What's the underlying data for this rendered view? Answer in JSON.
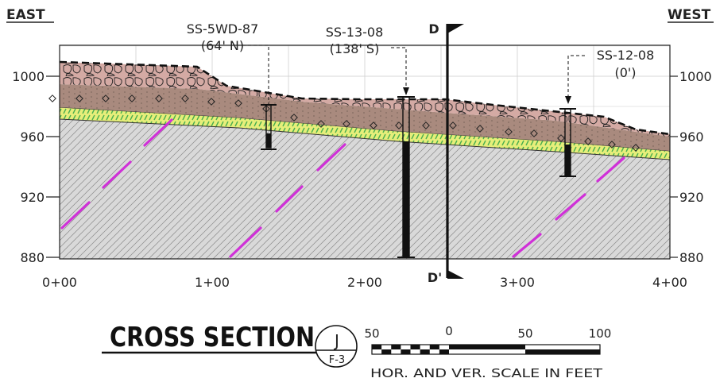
{
  "header": {
    "left_label": "EAST",
    "right_label": "WEST"
  },
  "section_line": {
    "top_label": "D",
    "bottom_label": "D'"
  },
  "axis": {
    "left_elevations": [
      "1000",
      "960",
      "920",
      "880"
    ],
    "right_elevations": [
      "1000",
      "960",
      "920",
      "880"
    ],
    "stations": [
      "0+00",
      "1+00",
      "2+00",
      "3+00",
      "4+00"
    ]
  },
  "borings": [
    {
      "id": "SS-5WD-87",
      "offset": "(64' N)"
    },
    {
      "id": "SS-13-08",
      "offset": "(138' S)"
    },
    {
      "id": "SS-12-08",
      "offset": "(0')"
    }
  ],
  "title_block": {
    "title": "CROSS SECTION",
    "section_letter": "J",
    "sheet_ref": "F-3",
    "scale_labels": [
      "50",
      "0",
      "50",
      "100"
    ],
    "scale_caption": "HOR. AND VER. SCALE IN FEET"
  },
  "colors": {
    "fill_brown": "#a98a7e",
    "cobble_pink": "#d4aaa4",
    "sand_yellow": "#e6ee7a",
    "sand_green": "#4caf50",
    "bedrock_gray": "#d6d6d6",
    "joint_magenta": "#d030d8"
  }
}
